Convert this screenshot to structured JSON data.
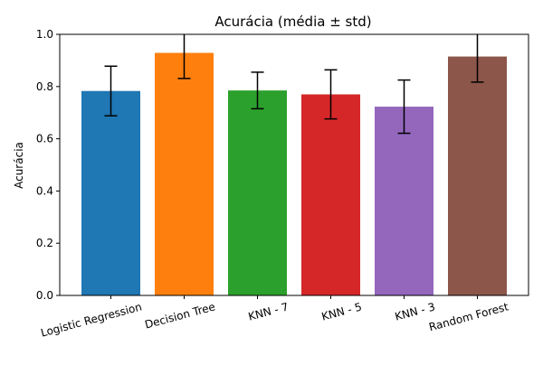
{
  "chart_data": {
    "type": "bar",
    "title": "Acurácia (média ± std)",
    "xlabel": "",
    "ylabel": "Acurácia",
    "ylim": [
      0,
      1.0
    ],
    "yticks": [
      "0.0",
      "0.2",
      "0.4",
      "0.6",
      "0.8",
      "1.0"
    ],
    "ytick_values": [
      0,
      0.2,
      0.4,
      0.6,
      0.8,
      1.0
    ],
    "categories": [
      "Logistic Regression",
      "Decision Tree",
      "KNN - 7",
      "KNN - 5",
      "KNN - 3",
      "Random Forest"
    ],
    "values": [
      0.783,
      0.929,
      0.785,
      0.77,
      0.723,
      0.915
    ],
    "errors": [
      0.095,
      0.098,
      0.07,
      0.094,
      0.102,
      0.098
    ],
    "colors": [
      "#1f77b4",
      "#ff7f0e",
      "#2ca02c",
      "#d62728",
      "#9467bd",
      "#8c564b"
    ],
    "grid": false,
    "legend": "none"
  }
}
